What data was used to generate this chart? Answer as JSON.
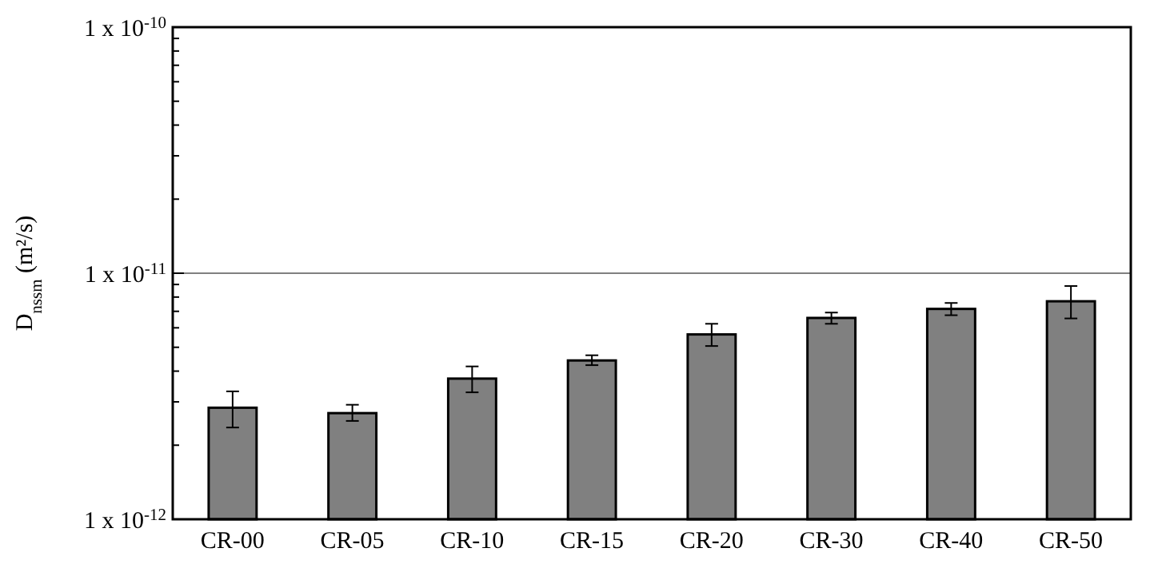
{
  "chart_data": {
    "type": "bar",
    "ylabel": "D$_{nssm}$ (m²/s)",
    "categories": [
      "CR-00",
      "CR-05",
      "CR-10",
      "CR-15",
      "CR-20",
      "CR-30",
      "CR-40",
      "CR-50"
    ],
    "values": [
      2.84e-12,
      2.7e-12,
      3.73e-12,
      4.42e-12,
      5.64e-12,
      6.58e-12,
      7.16e-12,
      7.69e-12
    ],
    "errors": [
      [
        2.36e-12,
        3.31e-12
      ],
      [
        2.51e-12,
        2.92e-12
      ],
      [
        3.28e-12,
        4.18e-12
      ],
      [
        4.23e-12,
        4.64e-12
      ],
      [
        5.06e-12,
        6.23e-12
      ],
      [
        6.23e-12,
        6.92e-12
      ],
      [
        6.75e-12,
        7.57e-12
      ],
      [
        6.55e-12,
        8.87e-12
      ]
    ],
    "color": "#808080",
    "log": "y",
    "ylim": [
      1e-12,
      1e-10
    ],
    "yticks": [
      {
        "value": 1e-12,
        "label": "1 x 10$^{-12}$"
      },
      {
        "value": 2e-12,
        "label": null
      },
      {
        "value": 3e-12,
        "label": null
      },
      {
        "value": 4e-12,
        "label": null
      },
      {
        "value": 5e-12,
        "label": null
      },
      {
        "value": 6e-12,
        "label": null
      },
      {
        "value": 7e-12,
        "label": null
      },
      {
        "value": 8e-12,
        "label": null
      },
      {
        "value": 9e-12,
        "label": null
      },
      {
        "value": 1e-11,
        "label": "1 x 10$^{-11}$"
      },
      {
        "value": 2e-11,
        "label": null
      },
      {
        "value": 3e-11,
        "label": null
      },
      {
        "value": 4e-11,
        "label": null
      },
      {
        "value": 5e-11,
        "label": null
      },
      {
        "value": 6e-11,
        "label": null
      },
      {
        "value": 7e-11,
        "label": null
      },
      {
        "value": 8e-11,
        "label": null
      },
      {
        "value": 9e-11,
        "label": null
      },
      {
        "value": 1e-10,
        "label": "1 x 10$^{-10}$"
      }
    ],
    "ref_lines": [
      {
        "axis": "y",
        "value": 1e-11,
        "color": "#808080"
      }
    ],
    "grid": false
  }
}
